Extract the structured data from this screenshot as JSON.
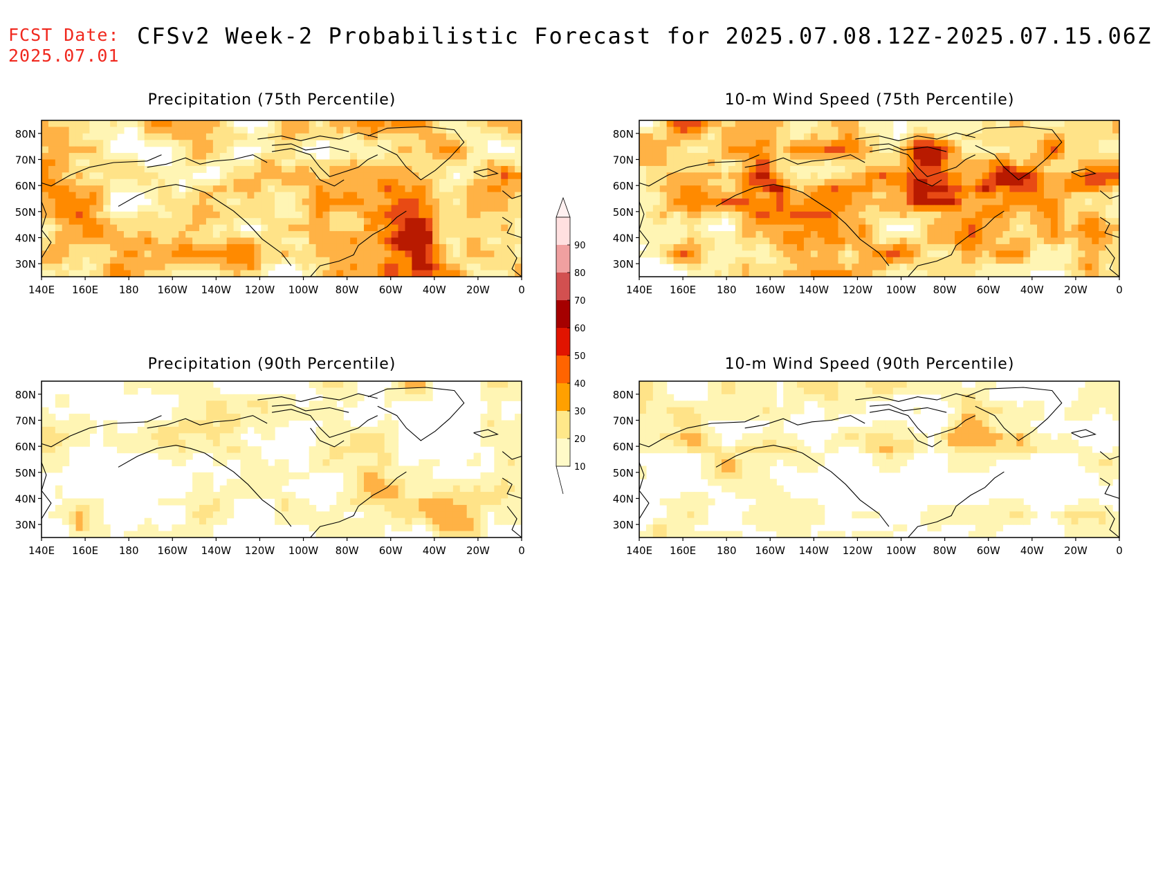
{
  "header": {
    "fcst_label": "FCST Date:",
    "fcst_date": "2025.07.01",
    "title": "CFSv2 Week-2 Probabilistic Forecast for 2025.07.08.12Z-2025.07.15.06Z"
  },
  "axes": {
    "lon_ticks": [
      "140E",
      "160E",
      "180",
      "160W",
      "140W",
      "120W",
      "100W",
      "80W",
      "60W",
      "40W",
      "20W",
      "0"
    ],
    "lat_ticks": [
      "80N",
      "70N",
      "60N",
      "50N",
      "40N",
      "30N"
    ]
  },
  "panels": [
    {
      "id": "precip-75",
      "title": "Precipitation (75th Percentile)",
      "intensity": 3,
      "field": "precip"
    },
    {
      "id": "wind-75",
      "title": "10-m Wind Speed (75th Percentile)",
      "intensity": 3,
      "field": "wind"
    },
    {
      "id": "precip-90",
      "title": "Precipitation (90th Percentile)",
      "intensity": 1,
      "field": "precip"
    },
    {
      "id": "wind-90",
      "title": "10-m Wind Speed (90th Percentile)",
      "intensity": 1,
      "field": "wind"
    }
  ],
  "colorbar": {
    "levels": [
      "10",
      "20",
      "30",
      "40",
      "50",
      "60",
      "70",
      "80",
      "90"
    ],
    "colors": [
      "#fffac8",
      "#ffe88a",
      "#ffa000",
      "#ff6400",
      "#e11400",
      "#a50000",
      "#d25050",
      "#f0a0a0",
      "#ffe0e0"
    ]
  },
  "palette": {
    "white": "#ffffff",
    "lt": "#fff5b4",
    "y": "#ffe388",
    "o": "#ffb245",
    "do": "#ff8a00",
    "r": "#e84a14",
    "dr": "#b81a00"
  }
}
